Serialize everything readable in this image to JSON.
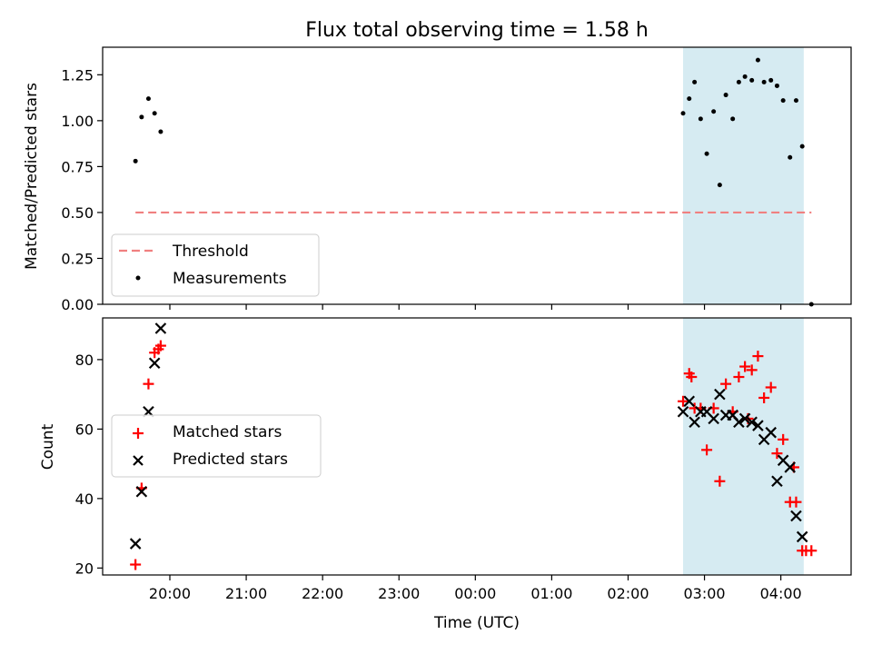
{
  "figure": {
    "title": "Flux total observing time = 1.58 h",
    "xlabel": "Time (UTC)",
    "x_tick_labels": [
      "20:00",
      "21:00",
      "22:00",
      "23:00",
      "00:00",
      "01:00",
      "02:00",
      "03:00",
      "04:00"
    ],
    "highlight_color": "#add8e6"
  },
  "chart_data": [
    {
      "type": "scatter",
      "title": "Flux total observing time = 1.58 h",
      "xlabel": "",
      "ylabel": "Matched/Predicted stars",
      "ylim": [
        0,
        1.4
      ],
      "yticks": [
        0.0,
        0.25,
        0.5,
        0.75,
        1.0,
        1.25
      ],
      "ytick_labels": [
        "0.00",
        "0.25",
        "0.50",
        "0.75",
        "1.00",
        "1.25"
      ],
      "x_hours_from_0000": true,
      "xlim": [
        -4.88,
        4.92
      ],
      "highlight_x": [
        2.72,
        4.3
      ],
      "threshold": {
        "y": 0.5,
        "x": [
          -4.45,
          4.4
        ],
        "color": "#f08080"
      },
      "series": [
        {
          "name": "Measurements",
          "color": "#000000",
          "marker": "dot",
          "x": [
            -4.45,
            -4.37,
            -4.28,
            -4.2,
            -4.12,
            2.72,
            2.8,
            2.87,
            2.95,
            3.03,
            3.12,
            3.2,
            3.28,
            3.37,
            3.45,
            3.53,
            3.62,
            3.7,
            3.78,
            3.87,
            3.95,
            4.03,
            4.12,
            4.2,
            4.28,
            4.4
          ],
          "y": [
            0.78,
            1.02,
            1.12,
            1.04,
            0.94,
            1.04,
            1.12,
            1.21,
            1.01,
            0.82,
            1.05,
            0.65,
            1.14,
            1.01,
            1.21,
            1.24,
            1.22,
            1.33,
            1.21,
            1.22,
            1.19,
            1.11,
            0.8,
            1.11,
            0.86,
            0.0
          ]
        }
      ],
      "legend_entries": [
        "Threshold",
        "Measurements"
      ],
      "legend": "lower-left"
    },
    {
      "type": "scatter",
      "title": "",
      "xlabel": "Time (UTC)",
      "ylabel": "Count",
      "ylim": [
        18,
        92
      ],
      "yticks": [
        20,
        40,
        60,
        80
      ],
      "ytick_labels": [
        "20",
        "40",
        "60",
        "80"
      ],
      "xlim": [
        -4.88,
        4.92
      ],
      "highlight_x": [
        2.72,
        4.3
      ],
      "series": [
        {
          "name": "Matched stars",
          "color": "#ff0000",
          "marker": "plus",
          "x": [
            -4.45,
            -4.37,
            -4.28,
            -4.2,
            -4.12,
            2.72,
            2.8,
            2.87,
            2.95,
            3.03,
            3.12,
            3.2,
            3.28,
            3.37,
            3.45,
            3.53,
            3.62,
            3.7,
            3.78,
            3.87,
            3.95,
            4.03,
            4.12,
            4.2,
            4.28,
            4.4,
            -4.15,
            2.83,
            3.57,
            4.17,
            4.33
          ],
          "y": [
            21,
            43,
            73,
            82,
            84,
            68,
            76,
            66,
            66,
            54,
            66,
            45,
            73,
            65,
            75,
            78,
            77,
            81,
            69,
            72,
            53,
            57,
            39,
            39,
            25,
            25,
            83,
            75,
            63,
            49,
            25
          ]
        },
        {
          "name": "Predicted stars",
          "color": "#000000",
          "marker": "x",
          "x": [
            -4.45,
            -4.37,
            -4.28,
            -4.2,
            -4.12,
            2.72,
            2.8,
            2.87,
            2.95,
            3.03,
            3.12,
            3.2,
            3.28,
            3.37,
            3.45,
            3.53,
            3.62,
            3.7,
            3.78,
            3.87,
            3.95,
            4.03,
            4.12,
            4.2,
            4.28
          ],
          "y": [
            27,
            42,
            65,
            79,
            89,
            65,
            68,
            62,
            65,
            65,
            63,
            70,
            64,
            64,
            62,
            63,
            62,
            61,
            57,
            59,
            45,
            51,
            49,
            35,
            29
          ]
        }
      ],
      "legend_entries": [
        "Matched stars",
        "Predicted stars"
      ],
      "legend": "center-left"
    }
  ]
}
